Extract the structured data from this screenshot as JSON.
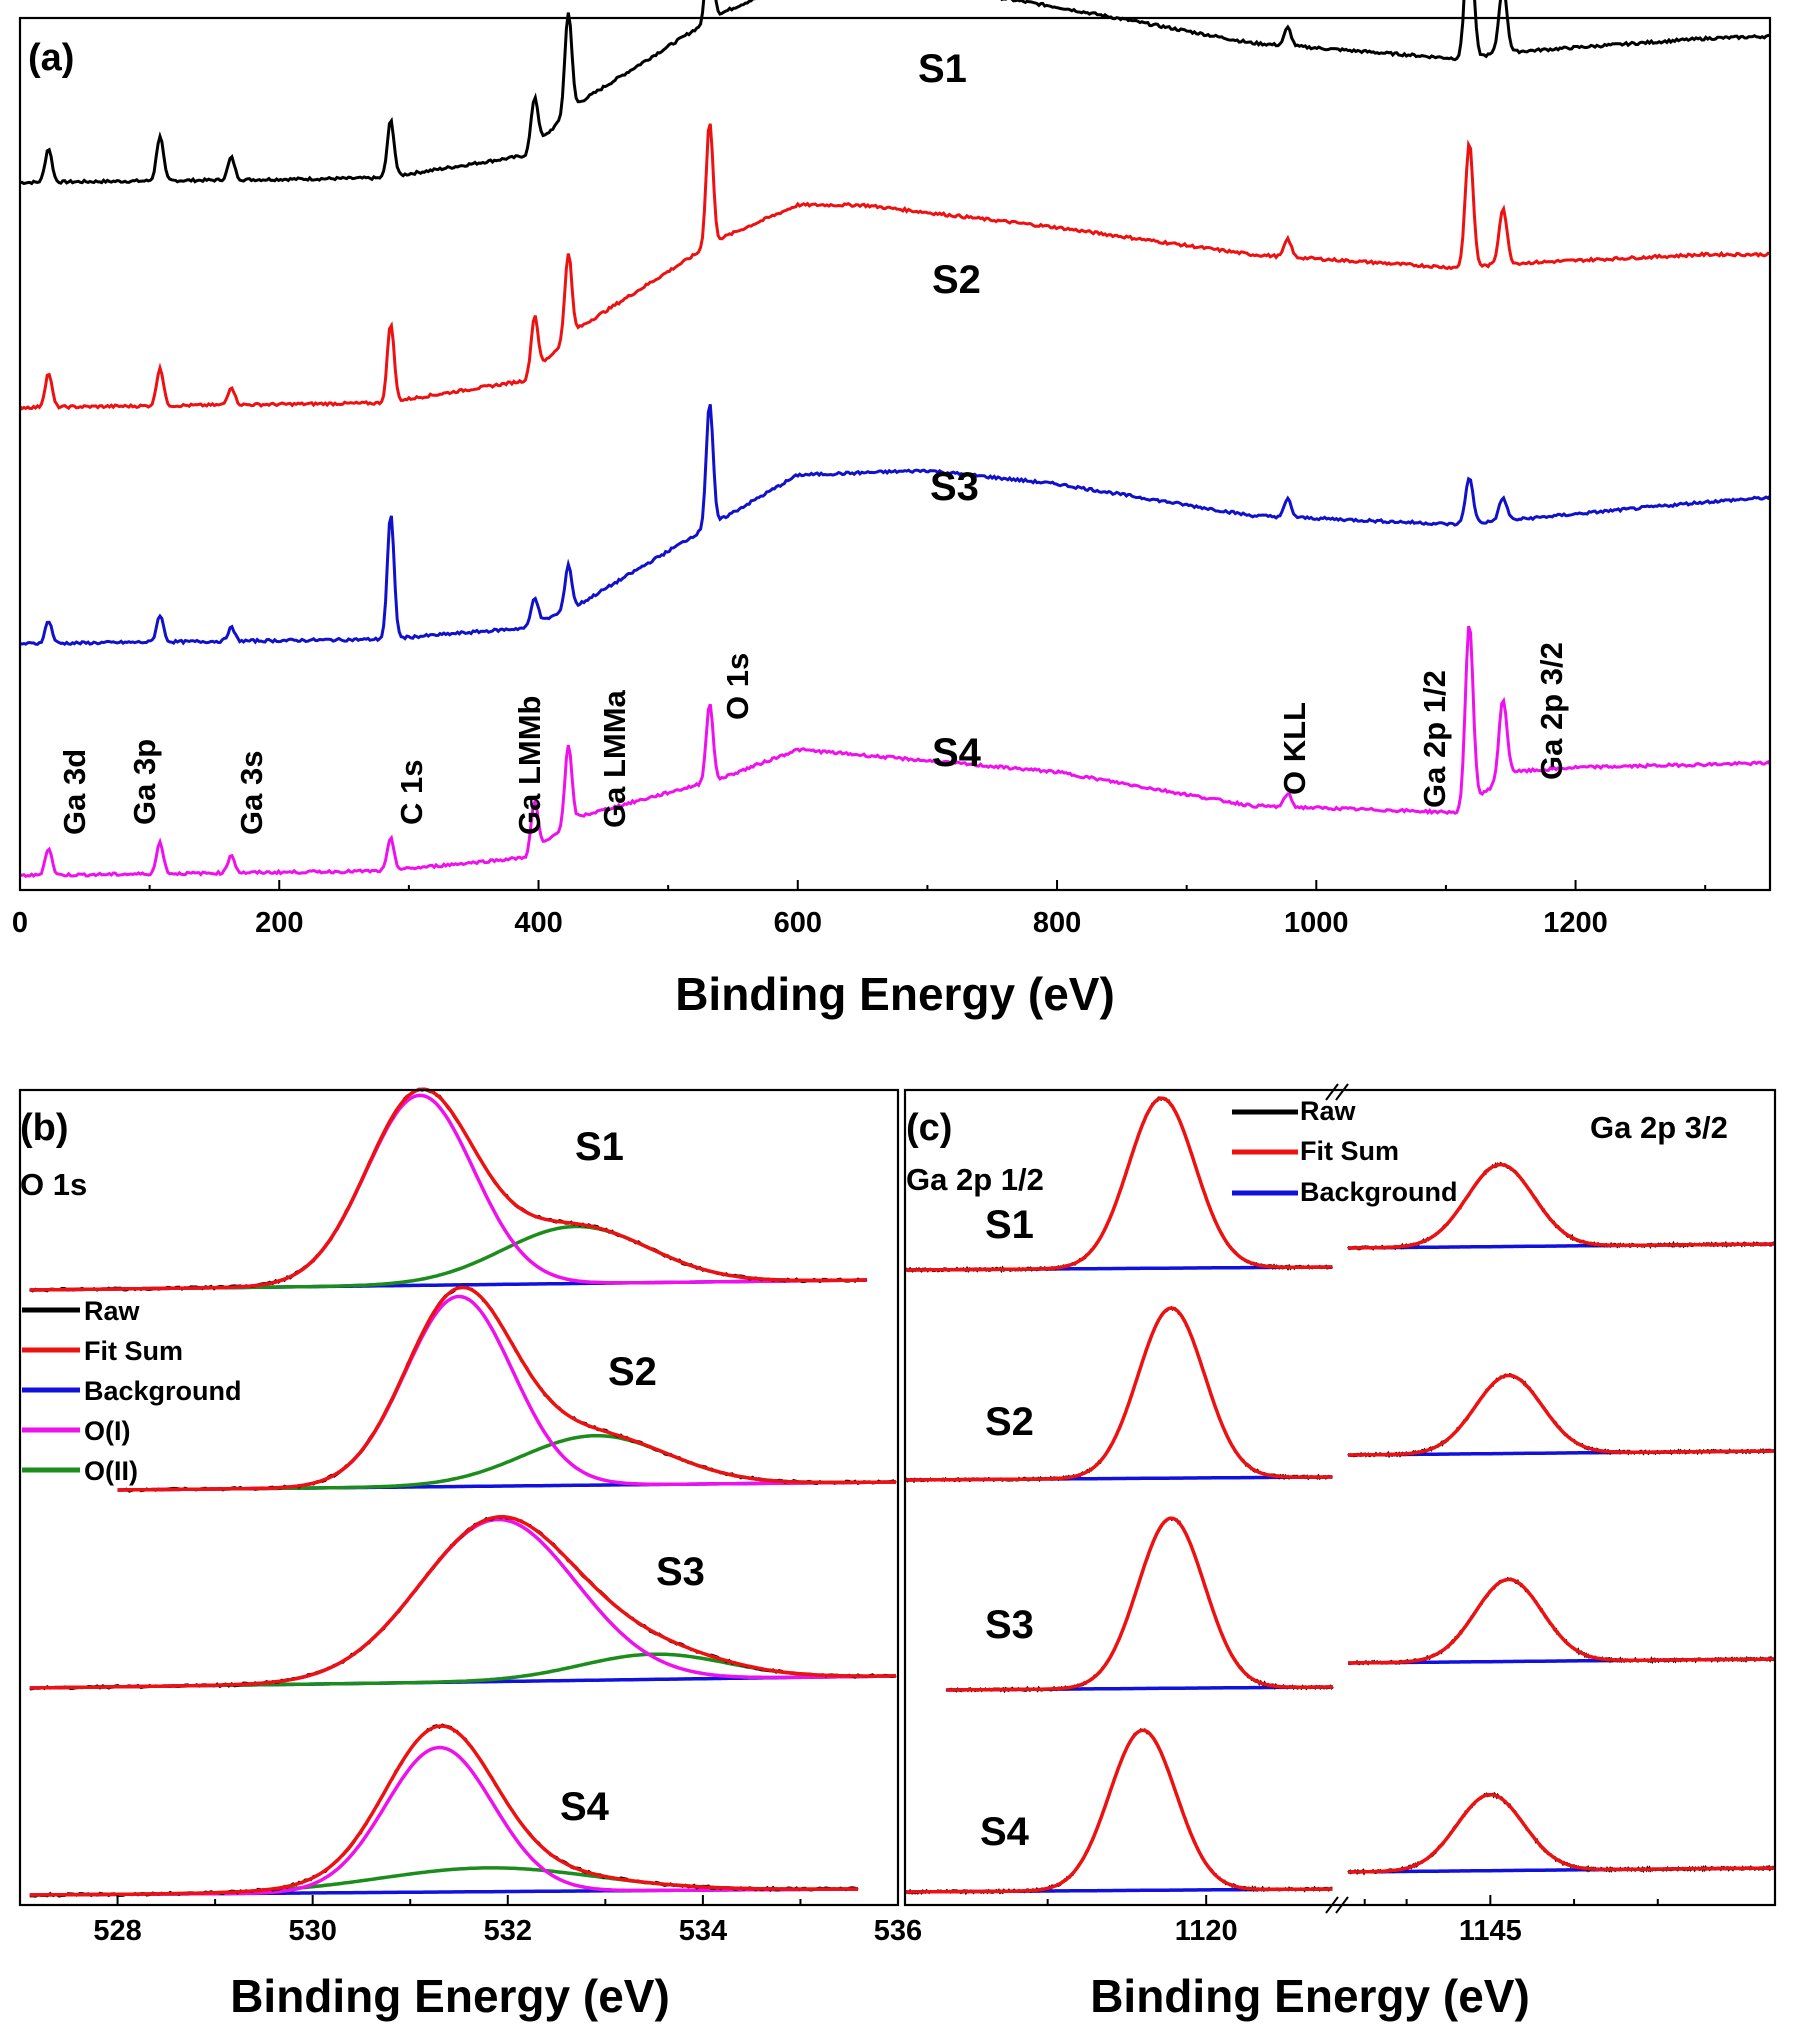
{
  "colors": {
    "raw": "#000000",
    "fit": "#ee1111",
    "background": "#1111dd",
    "o1": "#ee11ee",
    "o2": "#1c8c1c",
    "s1": "#000000",
    "s2": "#ee1111",
    "s3": "#1111cc",
    "s4": "#ee11ee"
  },
  "chart_data": [
    {
      "panel": "(a)",
      "type": "line",
      "xlabel": "Binding Energy (eV)",
      "ylabel": "",
      "xlim": [
        0,
        1350
      ],
      "xticks": [
        "0",
        "200",
        "400",
        "600",
        "800",
        "1000",
        "1200"
      ],
      "xtick_values": [
        0,
        200,
        400,
        600,
        800,
        1000,
        1200
      ],
      "series": [
        {
          "name": "S1",
          "offset": 3.0,
          "base": [
            [
              0,
              0.1
            ],
            [
              280,
              0.12
            ],
            [
              390,
              0.22
            ],
            [
              430,
              0.45
            ],
            [
              540,
              0.85
            ],
            [
              600,
              1.0
            ],
            [
              650,
              1.02
            ],
            [
              800,
              0.88
            ],
            [
              950,
              0.72
            ],
            [
              1110,
              0.65
            ],
            [
              1150,
              0.68
            ],
            [
              1300,
              0.74
            ],
            [
              1350,
              0.75
            ]
          ]
        },
        {
          "name": "S2",
          "offset": 2.0,
          "base": [
            [
              0,
              0.1
            ],
            [
              280,
              0.12
            ],
            [
              390,
              0.22
            ],
            [
              430,
              0.45
            ],
            [
              540,
              0.85
            ],
            [
              600,
              1.0
            ],
            [
              650,
              1.0
            ],
            [
              800,
              0.9
            ],
            [
              950,
              0.78
            ],
            [
              1110,
              0.72
            ],
            [
              1150,
              0.74
            ],
            [
              1300,
              0.78
            ],
            [
              1350,
              0.78
            ]
          ]
        },
        {
          "name": "S3",
          "offset": 1.0,
          "base": [
            [
              0,
              0.05
            ],
            [
              280,
              0.07
            ],
            [
              390,
              0.12
            ],
            [
              430,
              0.22
            ],
            [
              540,
              0.6
            ],
            [
              600,
              0.8
            ],
            [
              700,
              0.82
            ],
            [
              800,
              0.76
            ],
            [
              950,
              0.62
            ],
            [
              1110,
              0.58
            ],
            [
              1150,
              0.6
            ],
            [
              1300,
              0.68
            ],
            [
              1350,
              0.7
            ]
          ]
        },
        {
          "name": "S4",
          "offset": 0.0,
          "base": [
            [
              0,
              0.02
            ],
            [
              280,
              0.04
            ],
            [
              390,
              0.1
            ],
            [
              430,
              0.28
            ],
            [
              540,
              0.45
            ],
            [
              600,
              0.58
            ],
            [
              800,
              0.48
            ],
            [
              950,
              0.33
            ],
            [
              1110,
              0.3
            ],
            [
              1150,
              0.48
            ],
            [
              1200,
              0.5
            ],
            [
              1350,
              0.52
            ]
          ]
        }
      ],
      "peaks": [
        {
          "label": "Ga 3d",
          "x": 22,
          "heights": [
            0.15,
            0.15,
            0.1,
            0.12
          ]
        },
        {
          "label": "Ga 3p",
          "x": 108,
          "heights": [
            0.2,
            0.17,
            0.12,
            0.14
          ]
        },
        {
          "label": "Ga 3s",
          "x": 163,
          "heights": [
            0.1,
            0.08,
            0.06,
            0.08
          ]
        },
        {
          "label": "C 1s",
          "x": 286,
          "heights": [
            0.25,
            0.35,
            0.55,
            0.14
          ]
        },
        {
          "label": "Ga LMMb",
          "x": 397,
          "heights": [
            0.22,
            0.25,
            0.12,
            0.22
          ]
        },
        {
          "label": "Ga LMMa",
          "x": 423,
          "heights": [
            0.45,
            0.38,
            0.2,
            0.35
          ]
        },
        {
          "label": "O 1s",
          "x": 532,
          "heights": [
            0.45,
            0.55,
            0.55,
            0.35
          ]
        },
        {
          "label": "O KLL",
          "x": 978,
          "heights": [
            0.08,
            0.08,
            0.08,
            0.06
          ]
        },
        {
          "label": "Ga 2p 1/2",
          "x": 1118,
          "heights": [
            0.65,
            0.55,
            0.2,
            0.8
          ]
        },
        {
          "label": "Ga 2p 3/2",
          "x": 1144,
          "heights": [
            0.3,
            0.25,
            0.1,
            0.35
          ]
        }
      ]
    },
    {
      "panel": "(b)",
      "region": "O 1s",
      "type": "line",
      "xlabel": "Binding Energy (eV)",
      "xlim": [
        527,
        536
      ],
      "xticks": [
        "528",
        "530",
        "532",
        "534",
        "536"
      ],
      "xtick_values": [
        528,
        530,
        532,
        534,
        536
      ],
      "legend": [
        "Raw",
        "Fit Sum",
        "Background",
        "O(I)",
        "O(II)"
      ],
      "series": [
        {
          "name": "S1",
          "OI": {
            "center": 531.1,
            "amplitude": 1.0
          },
          "OII": {
            "center": 532.7,
            "amplitude": 0.3
          }
        },
        {
          "name": "S2",
          "OI": {
            "center": 531.5,
            "amplitude": 1.0
          },
          "OII": {
            "center": 532.9,
            "amplitude": 0.26
          }
        },
        {
          "name": "S3",
          "OI": {
            "center": 531.9,
            "amplitude": 0.9
          },
          "OII": {
            "center": 533.5,
            "amplitude": 0.14
          }
        },
        {
          "name": "S4",
          "OI": {
            "center": 531.3,
            "amplitude": 0.85
          },
          "OII": {
            "center": 531.8,
            "amplitude": 0.14
          }
        }
      ]
    },
    {
      "panel": "(c)",
      "type": "line",
      "xlabel": "Binding Energy (eV)",
      "xticks": [
        "1120",
        "1145"
      ],
      "xtick_values": [
        1120,
        1145
      ],
      "legend": [
        "Raw",
        "Fit Sum",
        "Background"
      ],
      "regions": [
        "Ga 2p 1/2",
        "Ga 2p 3/2"
      ],
      "series": [
        {
          "name": "S1",
          "p12_center": 1118.6,
          "p32_center": 1145.6
        },
        {
          "name": "S2",
          "p12_center": 1118.9,
          "p32_center": 1146.1
        },
        {
          "name": "S3",
          "p12_center": 1118.9,
          "p32_center": 1146.1
        },
        {
          "name": "S4",
          "p12_center": 1118.0,
          "p32_center": 1145.0
        }
      ]
    }
  ]
}
